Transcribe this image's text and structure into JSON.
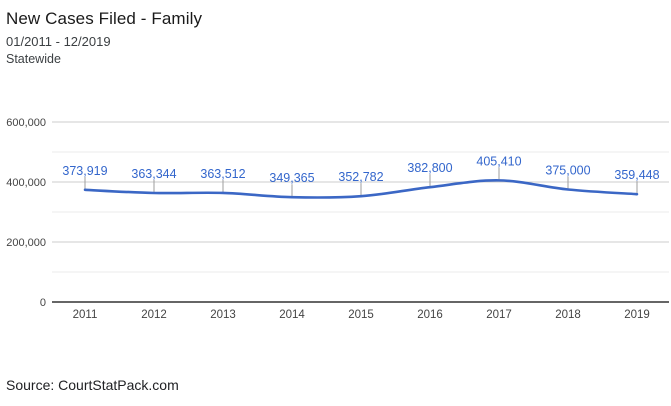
{
  "header": {
    "title": "New Cases Filed - Family",
    "date_range": "01/2011 - 12/2019",
    "scope": "Statewide"
  },
  "footer": {
    "source": "Source: CourtStatPack.com"
  },
  "chart_data": {
    "type": "line",
    "title": "New Cases Filed - Family",
    "subtitle": "01/2011 - 12/2019",
    "scope": "Statewide",
    "categories": [
      "2011",
      "2012",
      "2013",
      "2014",
      "2015",
      "2016",
      "2017",
      "2018",
      "2019"
    ],
    "values": [
      373919,
      363344,
      363512,
      349365,
      352782,
      382800,
      405410,
      375000,
      359448
    ],
    "data_labels": [
      "373,919",
      "363,344",
      "363,512",
      "349,365",
      "352,782",
      "382,800",
      "405,410",
      "375,000",
      "359,448"
    ],
    "xlabel": "",
    "ylabel": "",
    "ylim": [
      0,
      600000
    ],
    "y_major_ticks": [
      0,
      200000,
      400000,
      600000
    ],
    "y_tick_labels": [
      "0",
      "200,000",
      "400,000",
      "600,000"
    ],
    "y_minor_ticks": [
      100000,
      300000,
      500000
    ],
    "grid": true,
    "legend_position": "none",
    "curve": "smooth",
    "colors": {
      "line": "#3b67c5",
      "data_label": "#3366cc",
      "label_connector": "#9e9e9e",
      "major_gridline": "#cccccc",
      "minor_gridline": "#ebebeb",
      "axis_baseline": "#333333",
      "axis_text": "#444444"
    }
  }
}
